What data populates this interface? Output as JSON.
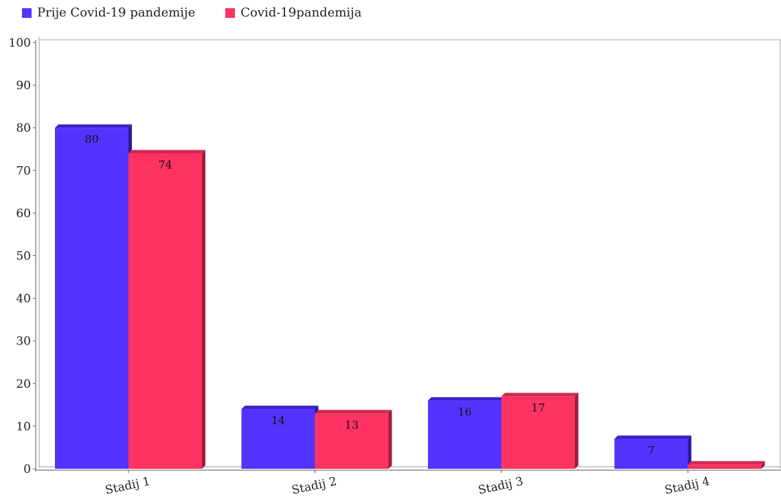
{
  "colors": {
    "series1": "#5533ff",
    "series1_side": "#2a1a9a",
    "series1_top": "#3d22c8",
    "series2": "#ff3361",
    "series2_side": "#a01d3c",
    "series2_top": "#cf2a50",
    "axis": "#555555"
  },
  "chart_data": {
    "type": "bar",
    "title": "",
    "xlabel": "",
    "ylabel": "",
    "ylim": [
      0,
      100
    ],
    "yticks": [
      0,
      10,
      20,
      30,
      40,
      50,
      60,
      70,
      80,
      90,
      100
    ],
    "categories": [
      "Stadij 1",
      "Stadij 2",
      "Stadij 3",
      "Stadij 4"
    ],
    "series": [
      {
        "name": "Prije Covid-19 pandemije",
        "values": [
          80,
          14,
          16,
          7
        ],
        "labels": [
          "80",
          "14",
          "16",
          "7"
        ]
      },
      {
        "name": "Covid-19pandemija",
        "values": [
          74,
          13,
          17,
          1
        ],
        "labels": [
          "74",
          "13",
          "17",
          ""
        ]
      }
    ],
    "legend": "top-left",
    "grid": false
  }
}
